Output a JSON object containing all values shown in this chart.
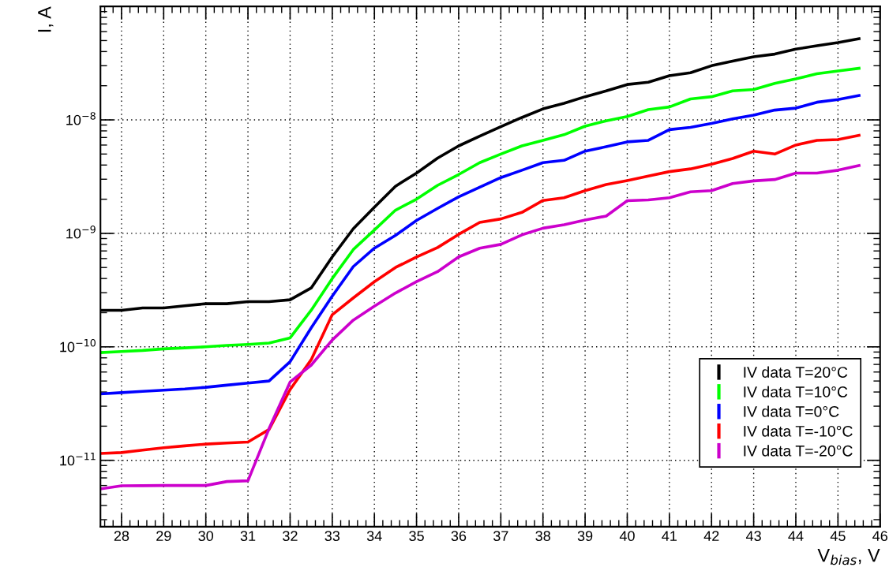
{
  "chart_data": {
    "type": "line",
    "xlabel": "V$_{bias}$, V",
    "ylabel": "I, A",
    "x": [
      27.5,
      28,
      28.5,
      29,
      29.5,
      30,
      30.5,
      31,
      31.5,
      32,
      32.5,
      33,
      33.5,
      34,
      34.5,
      35,
      35.5,
      36,
      36.5,
      37,
      37.5,
      38,
      38.5,
      39,
      39.5,
      40,
      40.5,
      41,
      41.5,
      42,
      42.5,
      43,
      43.5,
      44,
      44.5,
      45,
      45.5
    ],
    "series": [
      {
        "name": "IV data T=20°C",
        "color": "#000000",
        "values": [
          2.1e-10,
          2.1e-10,
          2.2e-10,
          2.2e-10,
          2.3e-10,
          2.4e-10,
          2.4e-10,
          2.5e-10,
          2.5e-10,
          2.6e-10,
          3.3e-10,
          6.2e-10,
          1.1e-09,
          1.7e-09,
          2.6e-09,
          3.4e-09,
          4.6e-09,
          5.9e-09,
          7.2e-09,
          8.7e-09,
          1.05e-08,
          1.25e-08,
          1.4e-08,
          1.6e-08,
          1.8e-08,
          2.05e-08,
          2.15e-08,
          2.45e-08,
          2.6e-08,
          3e-08,
          3.3e-08,
          3.6e-08,
          3.8e-08,
          4.2e-08,
          4.5e-08,
          4.8e-08,
          5.2e-08
        ]
      },
      {
        "name": "IV data T=10°C",
        "color": "#00ff00",
        "values": [
          8.9e-11,
          9.1e-11,
          9.3e-11,
          9.6e-11,
          9.8e-11,
          1e-10,
          1.03e-10,
          1.05e-10,
          1.08e-10,
          1.2e-10,
          2.1e-10,
          4e-10,
          7.2e-10,
          1.07e-09,
          1.6e-09,
          2e-09,
          2.65e-09,
          3.3e-09,
          4.2e-09,
          5e-09,
          5.9e-09,
          6.6e-09,
          7.4e-09,
          8.8e-09,
          9.8e-09,
          1.07e-08,
          1.23e-08,
          1.3e-08,
          1.53e-08,
          1.6e-08,
          1.8e-08,
          1.85e-08,
          2.1e-08,
          2.3e-08,
          2.55e-08,
          2.7e-08,
          2.85e-08
        ]
      },
      {
        "name": "IV data T=0°C",
        "color": "#0000ff",
        "values": [
          3.85e-11,
          3.95e-11,
          4.05e-11,
          4.15e-11,
          4.25e-11,
          4.4e-11,
          4.6e-11,
          4.8e-11,
          5e-11,
          7.4e-11,
          1.47e-10,
          2.8e-10,
          5.1e-10,
          7.4e-10,
          9.6e-10,
          1.3e-09,
          1.66e-09,
          2.1e-09,
          2.55e-09,
          3.1e-09,
          3.6e-09,
          4.2e-09,
          4.4e-09,
          5.3e-09,
          5.8e-09,
          6.4e-09,
          6.6e-09,
          8.2e-09,
          8.6e-09,
          9.3e-09,
          1.02e-08,
          1.1e-08,
          1.22e-08,
          1.27e-08,
          1.43e-08,
          1.51e-08,
          1.64e-08
        ]
      },
      {
        "name": "IV data T=-10°C",
        "color": "#ff0000",
        "values": [
          1.15e-11,
          1.17e-11,
          1.23e-11,
          1.29e-11,
          1.34e-11,
          1.39e-11,
          1.42e-11,
          1.45e-11,
          1.87e-11,
          4.2e-11,
          7.7e-11,
          1.92e-10,
          2.7e-10,
          3.75e-10,
          5e-10,
          6.2e-10,
          7.5e-10,
          9.8e-10,
          1.25e-09,
          1.34e-09,
          1.53e-09,
          1.95e-09,
          2.06e-09,
          2.38e-09,
          2.69e-09,
          2.92e-09,
          3.2e-09,
          3.5e-09,
          3.7e-09,
          4.07e-09,
          4.57e-09,
          5.3e-09,
          5e-09,
          6e-09,
          6.6e-09,
          6.7e-09,
          7.3e-09
        ]
      },
      {
        "name": "IV data T=-20°C",
        "color": "#cc00cc",
        "values": [
          5.6e-12,
          5.97e-12,
          5.98e-12,
          6e-12,
          6e-12,
          6e-12,
          6.5e-12,
          6.6e-12,
          1.9e-11,
          4.9e-11,
          6.9e-11,
          1.15e-10,
          1.72e-10,
          2.28e-10,
          2.98e-10,
          3.75e-10,
          4.6e-10,
          6.2e-10,
          7.4e-10,
          8e-10,
          9.7e-10,
          1.11e-09,
          1.19e-09,
          1.31e-09,
          1.42e-09,
          1.94e-09,
          1.97e-09,
          2.06e-09,
          2.32e-09,
          2.38e-09,
          2.75e-09,
          2.9e-09,
          2.98e-09,
          3.4e-09,
          3.4e-09,
          3.6e-09,
          3.96e-09
        ]
      }
    ],
    "log": "y",
    "xlim": [
      27.5,
      46
    ],
    "ylim": [
      2.6e-12,
      1e-07
    ],
    "xticks": [
      28,
      29,
      30,
      31,
      32,
      33,
      34,
      35,
      36,
      37,
      38,
      39,
      40,
      41,
      42,
      43,
      44,
      45,
      46
    ],
    "yticks": [
      {
        "value": 1e-11,
        "label": "10$^{−11}$"
      },
      {
        "value": 1e-10,
        "label": "10$^{−10}$"
      },
      {
        "value": 1e-09,
        "label": "10$^{−9}$"
      },
      {
        "value": 1e-08,
        "label": "10$^{−8}$"
      }
    ],
    "grid": true,
    "legend": "bottom right",
    "line_style": "solid"
  }
}
